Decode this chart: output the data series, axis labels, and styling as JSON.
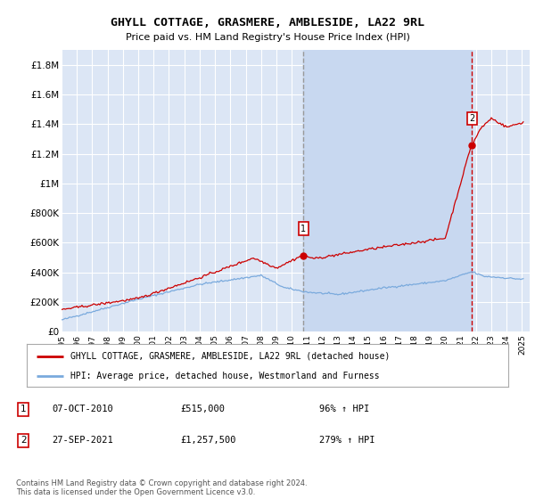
{
  "title": "GHYLL COTTAGE, GRASMERE, AMBLESIDE, LA22 9RL",
  "subtitle": "Price paid vs. HM Land Registry's House Price Index (HPI)",
  "ylim": [
    0,
    1900000
  ],
  "yticks": [
    0,
    200000,
    400000,
    600000,
    800000,
    1000000,
    1200000,
    1400000,
    1600000,
    1800000
  ],
  "ytick_labels": [
    "£0",
    "£200K",
    "£400K",
    "£600K",
    "£800K",
    "£1M",
    "£1.2M",
    "£1.4M",
    "£1.6M",
    "£1.8M"
  ],
  "xlim_start": 1995.0,
  "xlim_end": 2025.5,
  "plot_bg_color": "#dce6f5",
  "shade_color": "#c8d8f0",
  "grid_color": "#ffffff",
  "sale1_x": 2010.77,
  "sale1_y": 515000,
  "sale1_label": "1",
  "sale1_date": "07-OCT-2010",
  "sale1_price": "£515,000",
  "sale1_hpi": "96% ↑ HPI",
  "sale2_x": 2021.74,
  "sale2_y": 1257500,
  "sale2_label": "2",
  "sale2_date": "27-SEP-2021",
  "sale2_price": "£1,257,500",
  "sale2_hpi": "279% ↑ HPI",
  "red_line_color": "#cc0000",
  "blue_line_color": "#7aaadd",
  "vline_color": "#999999",
  "vline2_color": "#cc0000",
  "legend_label_red": "GHYLL COTTAGE, GRASMERE, AMBLESIDE, LA22 9RL (detached house)",
  "legend_label_blue": "HPI: Average price, detached house, Westmorland and Furness",
  "footnote": "Contains HM Land Registry data © Crown copyright and database right 2024.\nThis data is licensed under the Open Government Licence v3.0."
}
